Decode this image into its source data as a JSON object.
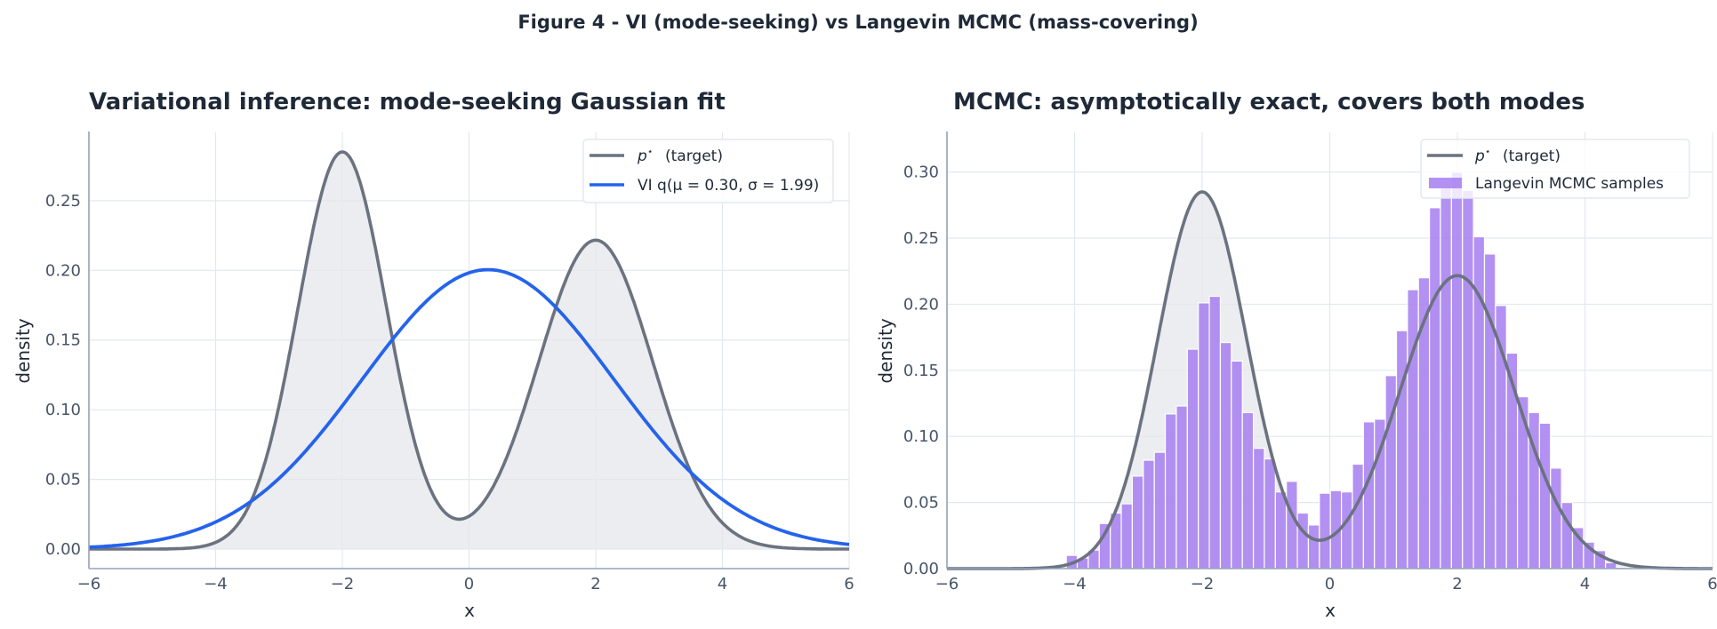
{
  "figure": {
    "suptitle": "Figure 4 - VI (mode-seeking) vs Langevin MCMC (mass-covering)"
  },
  "colors": {
    "target": "#6b7280",
    "target_fill": "#e5e7eb",
    "vi": "#2563eb",
    "hist": "#a67ef0",
    "grid": "#e2e8f0",
    "spine": "#94a3b8"
  },
  "chart_data": [
    {
      "type": "line",
      "title": "Variational inference: mode-seeking Gaussian fit",
      "xlabel": "x",
      "ylabel": "density",
      "xlim": [
        -6,
        6
      ],
      "ylim": [
        -0.014,
        0.299
      ],
      "xticks": [
        "−6",
        "−4",
        "−2",
        "0",
        "2",
        "4",
        "6"
      ],
      "xtick_values": [
        -6,
        -4,
        -2,
        0,
        2,
        4,
        6
      ],
      "yticks": [
        "0.00",
        "0.05",
        "0.10",
        "0.15",
        "0.20",
        "0.25"
      ],
      "ytick_values": [
        0,
        0.05,
        0.1,
        0.15,
        0.2,
        0.25
      ],
      "grid": true,
      "legend_position": "top-right",
      "series": [
        {
          "name": "p* (target)",
          "legend_label": "(target)",
          "kind": "gaussian-mixture",
          "components": [
            {
              "weight": 0.5,
              "mu": -2,
              "sigma": 0.7
            },
            {
              "weight": 0.5,
              "mu": 2,
              "sigma": 0.9
            }
          ],
          "filled": true
        },
        {
          "name": "VI q(μ=0.30, σ=1.99)",
          "legend_label": "VI q(μ = 0.30, σ = 1.99)",
          "kind": "gaussian",
          "mu": 0.3,
          "sigma": 1.99
        }
      ]
    },
    {
      "type": "bar",
      "title": "MCMC: asymptotically exact, covers both modes",
      "xlabel": "x",
      "ylabel": "density",
      "xlim": [
        -6,
        6
      ],
      "ylim": [
        0,
        0.33
      ],
      "xticks": [
        "−6",
        "−4",
        "−2",
        "0",
        "2",
        "4",
        "6"
      ],
      "xtick_values": [
        -6,
        -4,
        -2,
        0,
        2,
        4,
        6
      ],
      "yticks": [
        "0.00",
        "0.05",
        "0.10",
        "0.15",
        "0.20",
        "0.25",
        "0.30"
      ],
      "ytick_values": [
        0,
        0.05,
        0.1,
        0.15,
        0.2,
        0.25,
        0.3
      ],
      "grid": true,
      "legend_position": "top-right",
      "series": [
        {
          "name": "p* (target)",
          "legend_label": "(target)",
          "kind": "gaussian-mixture",
          "components": [
            {
              "weight": 0.5,
              "mu": -2,
              "sigma": 0.7
            },
            {
              "weight": 0.5,
              "mu": 2,
              "sigma": 0.9
            }
          ],
          "filled": true
        },
        {
          "name": "Langevin MCMC samples",
          "legend_label": "Langevin MCMC samples",
          "kind": "histogram",
          "bin_start": -4.13,
          "bin_width": 0.1725,
          "values": [
            0.01,
            0.008,
            0.014,
            0.034,
            0.042,
            0.049,
            0.07,
            0.082,
            0.088,
            0.117,
            0.123,
            0.166,
            0.201,
            0.206,
            0.171,
            0.157,
            0.118,
            0.091,
            0.083,
            0.058,
            0.066,
            0.042,
            0.033,
            0.057,
            0.059,
            0.058,
            0.079,
            0.111,
            0.113,
            0.146,
            0.18,
            0.211,
            0.22,
            0.273,
            0.288,
            0.3,
            0.286,
            0.251,
            0.238,
            0.199,
            0.163,
            0.13,
            0.118,
            0.11,
            0.076,
            0.05,
            0.031,
            0.02,
            0.0136,
            0.0045,
            0.001
          ]
        }
      ]
    }
  ]
}
